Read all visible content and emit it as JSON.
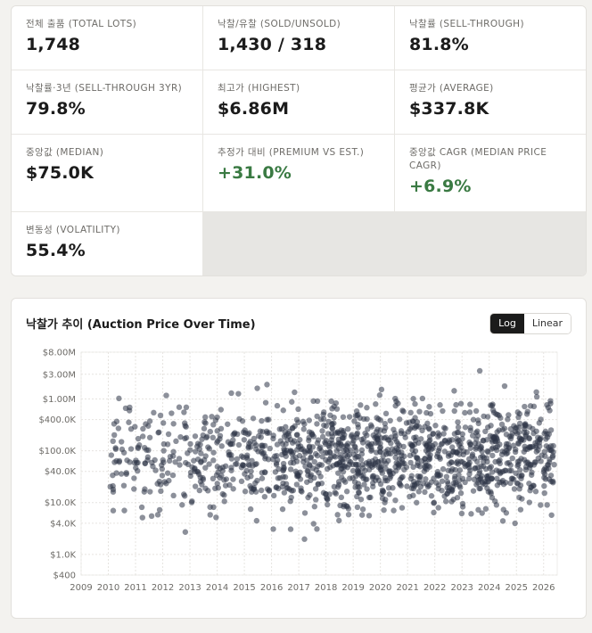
{
  "stats": [
    {
      "label": "전체 출품 (TOTAL LOTS)",
      "value": "1,748"
    },
    {
      "label": "낙찰/유찰 (SOLD/UNSOLD)",
      "value": "1,430 / 318"
    },
    {
      "label": "낙찰률 (SELL-THROUGH)",
      "value": "81.8%"
    },
    {
      "label": "낙찰률·3년 (SELL-THROUGH 3YR)",
      "value": "79.8%"
    },
    {
      "label": "최고가 (HIGHEST)",
      "value": "$6.86M"
    },
    {
      "label": "평균가 (AVERAGE)",
      "value": "$337.8K"
    },
    {
      "label": "중앙값 (MEDIAN)",
      "value": "$75.0K"
    },
    {
      "label": "추정가 대비 (PREMIUM VS EST.)",
      "value": "+31.0%"
    },
    {
      "label": "중앙값 CAGR (MEDIAN PRICE CAGR)",
      "value": "+6.9%"
    },
    {
      "label": "변동성 (VOLATILITY)",
      "value": "55.4%"
    }
  ],
  "chart": {
    "title": "낙찰가 추이 (Auction Price Over Time)",
    "toggle": {
      "log": "Log",
      "linear": "Linear",
      "active": "Log"
    }
  },
  "colors": {
    "positive": "#3a7a43",
    "point": "#2e3547",
    "accent_dark": "#1b1b1b"
  },
  "chart_data": {
    "type": "scatter",
    "scale": "log",
    "x_ticks": [
      "2009",
      "2010",
      "2011",
      "2012",
      "2013",
      "2014",
      "2015",
      "2016",
      "2017",
      "2018",
      "2019",
      "2020",
      "2021",
      "2022",
      "2023",
      "2024",
      "2025",
      "2026"
    ],
    "x_tick_values": [
      2009,
      2010,
      2011,
      2012,
      2013,
      2014,
      2015,
      2016,
      2017,
      2018,
      2019,
      2020,
      2021,
      2022,
      2023,
      2024,
      2025,
      2026
    ],
    "xlim": [
      2009,
      2026.5
    ],
    "y_ticks": [
      "$400",
      "$1.0K",
      "$4.0K",
      "$10.0K",
      "$40.0K",
      "$100.0K",
      "$400.0K",
      "$1.00M",
      "$3.00M",
      "$8.00M"
    ],
    "y_tick_values": [
      400,
      1000,
      4000,
      10000,
      40000,
      100000,
      400000,
      1000000,
      3000000,
      8000000
    ],
    "ylim": [
      400,
      8000000
    ],
    "grid": true,
    "point_count": 1430,
    "year_range": [
      2010,
      2026.4
    ],
    "density": [
      [
        2010,
        0.35
      ],
      [
        2012,
        0.45
      ],
      [
        2014,
        0.5
      ],
      [
        2016,
        0.55
      ],
      [
        2018,
        1.0
      ],
      [
        2020,
        1.0
      ],
      [
        2022,
        1.0
      ],
      [
        2024,
        1.0
      ],
      [
        2026,
        0.95
      ]
    ],
    "median_value": 75000,
    "highest_value": 6860000
  }
}
